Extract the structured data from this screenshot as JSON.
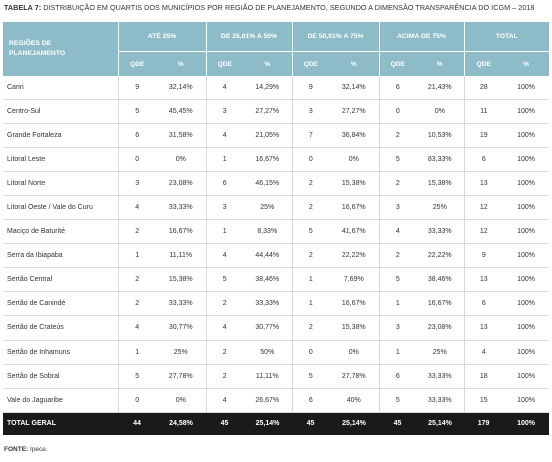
{
  "caption": {
    "label": "TABELA 7:",
    "text": "DISTRIBUIÇÃO EM QUARTIS DOS MUNICÍPIOS POR REGIÃO DE PLANEJAMENTO, SEGUNDO A DIMENSÃO TRANSPARÊNCIA DO ICGM – 2018"
  },
  "header": {
    "region_line1": "REGIÕES DE",
    "region_line2": "PLANEJAMENTO",
    "groups": [
      "ATÉ 25%",
      "DE 25,01% A 50%",
      "DE 50,01% A 75%",
      "ACIMA DE 75%",
      "TOTAL"
    ],
    "qde": "QDE",
    "pct": "%"
  },
  "rows": [
    {
      "name": "Cariri",
      "v": [
        "9",
        "32,14%",
        "4",
        "14,29%",
        "9",
        "32,14%",
        "6",
        "21,43%",
        "28",
        "100%"
      ]
    },
    {
      "name": "Centro-Sul",
      "v": [
        "5",
        "45,45%",
        "3",
        "27,27%",
        "3",
        "27,27%",
        "0",
        "0%",
        "11",
        "100%"
      ]
    },
    {
      "name": "Grande Fortaleza",
      "v": [
        "6",
        "31,58%",
        "4",
        "21,05%",
        "7",
        "36,84%",
        "2",
        "10,53%",
        "19",
        "100%"
      ]
    },
    {
      "name": "Litoral Leste",
      "v": [
        "0",
        "0%",
        "1",
        "16,67%",
        "0",
        "0%",
        "5",
        "83,33%",
        "6",
        "100%"
      ]
    },
    {
      "name": "Litoral Norte",
      "v": [
        "3",
        "23,08%",
        "6",
        "46,15%",
        "2",
        "15,38%",
        "2",
        "15,38%",
        "13",
        "100%"
      ]
    },
    {
      "name": "Litoral Oeste / Vale do Curu",
      "v": [
        "4",
        "33,33%",
        "3",
        "25%",
        "2",
        "16,67%",
        "3",
        "25%",
        "12",
        "100%"
      ]
    },
    {
      "name": "Maciço de Baturité",
      "v": [
        "2",
        "16,67%",
        "1",
        "8,33%",
        "5",
        "41,67%",
        "4",
        "33,33%",
        "12",
        "100%"
      ]
    },
    {
      "name": "Serra da Ibiapaba",
      "v": [
        "1",
        "11,11%",
        "4",
        "44,44%",
        "2",
        "22,22%",
        "2",
        "22,22%",
        "9",
        "100%"
      ]
    },
    {
      "name": "Sertão Central",
      "v": [
        "2",
        "15,38%",
        "5",
        "38,46%",
        "1",
        "7,69%",
        "5",
        "38,46%",
        "13",
        "100%"
      ]
    },
    {
      "name": "Sertão de Canindé",
      "v": [
        "2",
        "33,33%",
        "2",
        "33,33%",
        "1",
        "16,67%",
        "1",
        "16,67%",
        "6",
        "100%"
      ]
    },
    {
      "name": "Sertão de Crateús",
      "v": [
        "4",
        "30,77%",
        "4",
        "30,77%",
        "2",
        "15,38%",
        "3",
        "23,08%",
        "13",
        "100%"
      ]
    },
    {
      "name": "Sertão de Inhamuns",
      "v": [
        "1",
        "25%",
        "2",
        "50%",
        "0",
        "0%",
        "1",
        "25%",
        "4",
        "100%"
      ]
    },
    {
      "name": "Sertão de Sobral",
      "v": [
        "5",
        "27,78%",
        "2",
        "11,11%",
        "5",
        "27,78%",
        "6",
        "33,33%",
        "18",
        "100%"
      ]
    },
    {
      "name": "Vale do Jaguaribe",
      "v": [
        "0",
        "0%",
        "4",
        "26,67%",
        "6",
        "40%",
        "5",
        "33,33%",
        "15",
        "100%"
      ]
    }
  ],
  "total": {
    "name": "TOTAL GERAL",
    "v": [
      "44",
      "24,58%",
      "45",
      "25,14%",
      "45",
      "25,14%",
      "45",
      "25,14%",
      "179",
      "100%"
    ]
  },
  "footnote": {
    "label": "FONTE:",
    "text": "Ipece."
  }
}
